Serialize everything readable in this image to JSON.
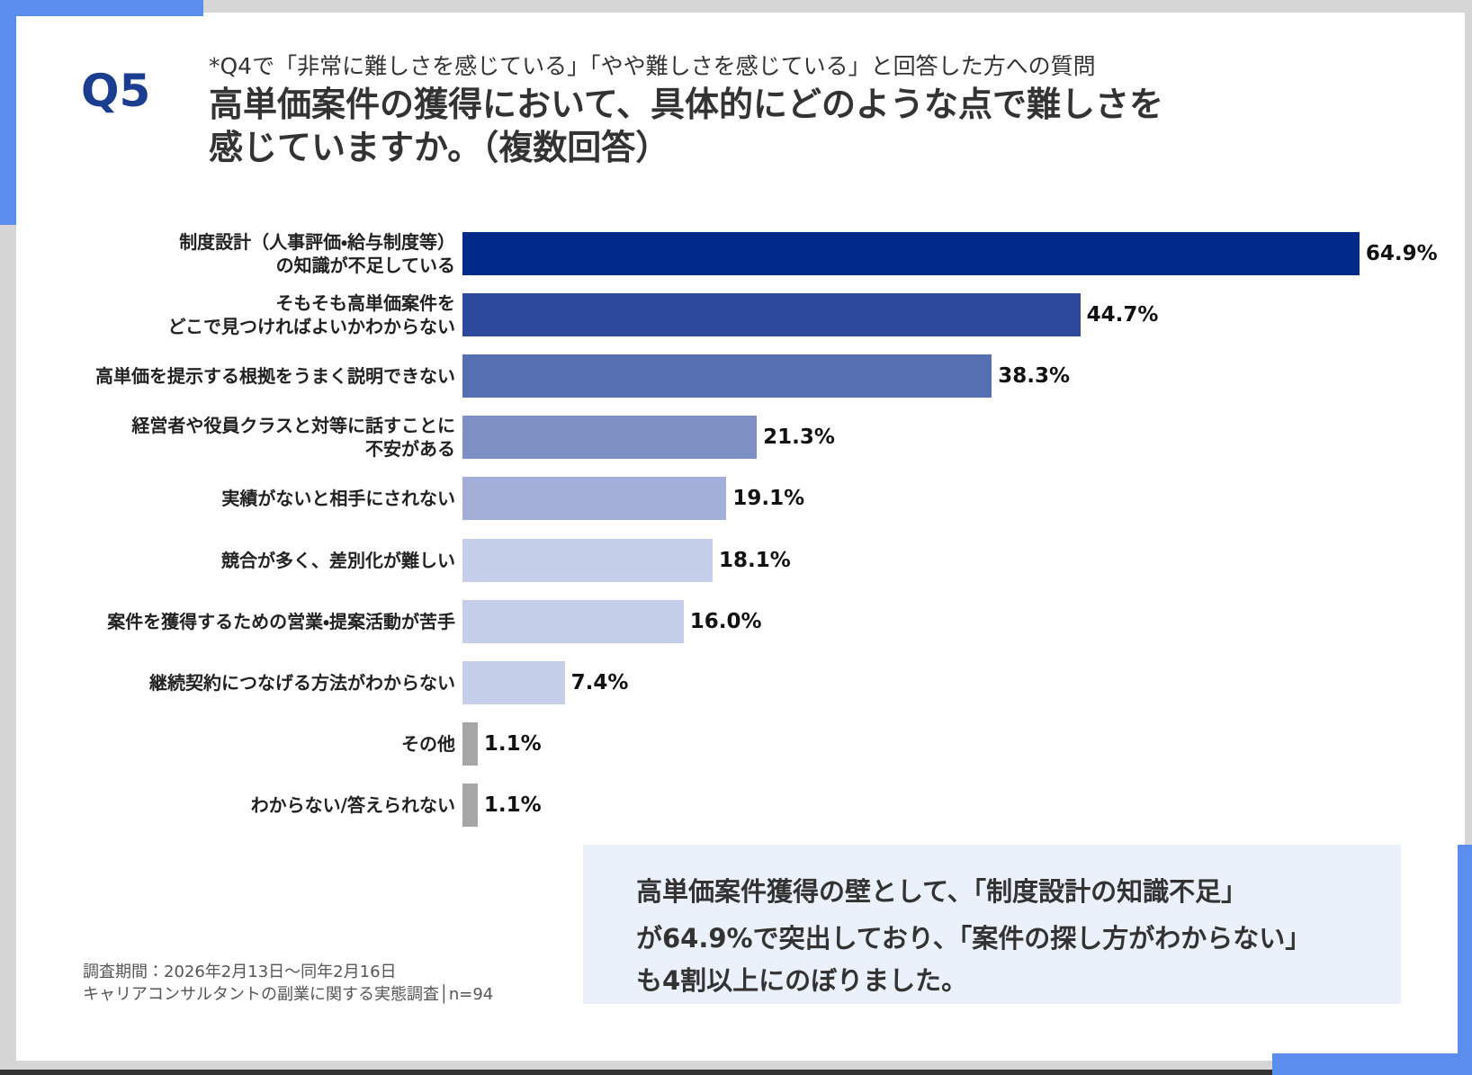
{
  "header": {
    "number": "Q5",
    "note": "*Q4で「非常に難しさを感じている」「やや難しさを感じている」と回答した方への質問",
    "title": "高単価案件の獲得において、具体的にどのような点で難しさを\n感じていますか。（複数回答）"
  },
  "chart_data": {
    "type": "bar",
    "orientation": "horizontal",
    "categories": [
      "制度設計（人事評価・給与制度等）\nの知識が不足している",
      "そもそも高単価案件を\nどこで見つければよいかわからない",
      "高単価を提示する根拠をうまく説明できない",
      "経営者や役員クラスと対等に話すことに\n不安がある",
      "実績がないと相手にされない",
      "競合が多く、差別化が難しい",
      "案件を獲得するための営業・提案活動が苦手",
      "継続契約につなげる方法がわからない",
      "その他",
      "わからない/答えられない"
    ],
    "values": [
      64.9,
      44.7,
      38.3,
      21.3,
      19.1,
      18.1,
      16.0,
      7.4,
      1.1,
      1.1
    ],
    "value_labels": [
      "64.9%",
      "44.7%",
      "38.3%",
      "21.3%",
      "19.1%",
      "18.1%",
      "16.0%",
      "7.4%",
      "1.1%",
      "1.1%"
    ],
    "colors": [
      "#002a8a",
      "#2e4a9e",
      "#566fb3",
      "#7e8fc4",
      "#a3afd8",
      "#c5cfe9",
      "#c5cfe9",
      "#c5cfe9",
      "#a6a6a6",
      "#a6a6a6"
    ]
  },
  "callout": {
    "lines": [
      "高単価案件獲得の壁として、「制度設計の知識不足」",
      "が64.9%で突出しており、「案件の探し方がわからない」",
      "も4割以上にのぼりました。"
    ]
  },
  "footer": {
    "lines": [
      "調査期間：2026年2月13日～同年2月16日",
      "キャリアコンサルタントの副業に関する実態調査│n=94"
    ]
  }
}
